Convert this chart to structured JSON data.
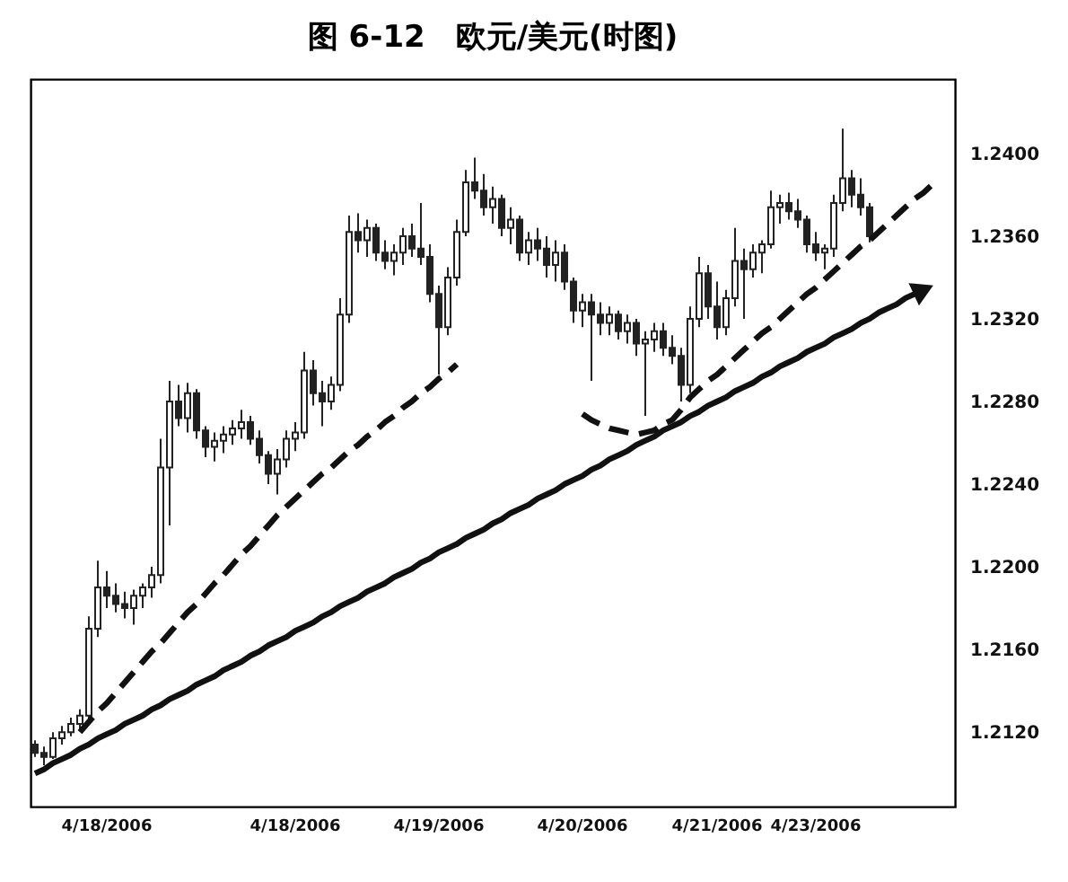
{
  "chart_data": {
    "type": "candlestick",
    "title": "图 6-12　欧元/美元(时图)",
    "color": "#222222",
    "categories": [
      null,
      null,
      null,
      null,
      null,
      null,
      null,
      null,
      "4/18/2006",
      null,
      null,
      null,
      null,
      null,
      null,
      null,
      null,
      null,
      null,
      null,
      null,
      null,
      null,
      null,
      null,
      null,
      null,
      null,
      null,
      "4/18/2006",
      null,
      null,
      null,
      null,
      null,
      null,
      null,
      null,
      null,
      null,
      null,
      null,
      null,
      null,
      null,
      "4/19/2006",
      null,
      null,
      null,
      null,
      null,
      null,
      null,
      null,
      null,
      null,
      null,
      null,
      null,
      null,
      null,
      "4/20/2006",
      null,
      null,
      null,
      null,
      null,
      null,
      null,
      null,
      null,
      null,
      null,
      null,
      null,
      null,
      "4/21/2006",
      null,
      null,
      null,
      null,
      null,
      null,
      null,
      null,
      null,
      null,
      "4/23/2006",
      null,
      null,
      null,
      null,
      null,
      null,
      null,
      null,
      null,
      null,
      null,
      null,
      null,
      null,
      null
    ],
    "ohlc": [
      [
        1.2114,
        1.2116,
        1.2108,
        1.211
      ],
      [
        1.211,
        1.2113,
        1.2104,
        1.2108
      ],
      [
        1.2108,
        1.212,
        1.2107,
        1.2117
      ],
      [
        1.2117,
        1.2123,
        1.2114,
        1.212
      ],
      [
        1.212,
        1.2127,
        1.2118,
        1.2124
      ],
      [
        1.2124,
        1.2131,
        1.2121,
        1.2128
      ],
      [
        1.2128,
        1.2176,
        1.2126,
        1.217
      ],
      [
        1.217,
        1.2203,
        1.2166,
        1.219
      ],
      [
        1.219,
        1.2198,
        1.218,
        1.2186
      ],
      [
        1.2186,
        1.2192,
        1.2178,
        1.2182
      ],
      [
        1.2182,
        1.2188,
        1.2175,
        1.218
      ],
      [
        1.218,
        1.2189,
        1.2172,
        1.2186
      ],
      [
        1.2186,
        1.2192,
        1.218,
        1.219
      ],
      [
        1.219,
        1.22,
        1.2185,
        1.2196
      ],
      [
        1.2196,
        1.2262,
        1.2192,
        1.2248
      ],
      [
        1.2248,
        1.229,
        1.222,
        1.228
      ],
      [
        1.228,
        1.2288,
        1.2268,
        1.2272
      ],
      [
        1.2272,
        1.2289,
        1.2265,
        1.2284
      ],
      [
        1.2284,
        1.2286,
        1.2262,
        1.2266
      ],
      [
        1.2266,
        1.2268,
        1.2253,
        1.2258
      ],
      [
        1.2258,
        1.2265,
        1.2251,
        1.2261
      ],
      [
        1.2261,
        1.2268,
        1.2255,
        1.2264
      ],
      [
        1.2264,
        1.2271,
        1.2259,
        1.2267
      ],
      [
        1.2267,
        1.2276,
        1.2262,
        1.227
      ],
      [
        1.227,
        1.2273,
        1.2259,
        1.2262
      ],
      [
        1.2262,
        1.2266,
        1.225,
        1.2254
      ],
      [
        1.2254,
        1.2256,
        1.224,
        1.2245
      ],
      [
        1.2245,
        1.2257,
        1.2235,
        1.2252
      ],
      [
        1.2252,
        1.2266,
        1.2248,
        1.2262
      ],
      [
        1.2262,
        1.227,
        1.2256,
        1.2265
      ],
      [
        1.2265,
        1.2304,
        1.2262,
        1.2295
      ],
      [
        1.2295,
        1.23,
        1.2278,
        1.2284
      ],
      [
        1.2284,
        1.229,
        1.2268,
        1.228
      ],
      [
        1.228,
        1.2292,
        1.2276,
        1.2288
      ],
      [
        1.2288,
        1.233,
        1.2285,
        1.2322
      ],
      [
        1.2322,
        1.237,
        1.2318,
        1.2362
      ],
      [
        1.2362,
        1.2371,
        1.2352,
        1.2358
      ],
      [
        1.2358,
        1.2368,
        1.235,
        1.2364
      ],
      [
        1.2364,
        1.2366,
        1.2348,
        1.2352
      ],
      [
        1.2352,
        1.2358,
        1.2344,
        1.2348
      ],
      [
        1.2348,
        1.2356,
        1.2341,
        1.2352
      ],
      [
        1.2352,
        1.2364,
        1.2346,
        1.236
      ],
      [
        1.236,
        1.2366,
        1.235,
        1.2354
      ],
      [
        1.2354,
        1.2376,
        1.2346,
        1.235
      ],
      [
        1.235,
        1.2356,
        1.2328,
        1.2332
      ],
      [
        1.2332,
        1.2336,
        1.2293,
        1.2316
      ],
      [
        1.2316,
        1.2345,
        1.2312,
        1.234
      ],
      [
        1.234,
        1.2368,
        1.2336,
        1.2362
      ],
      [
        1.2362,
        1.2392,
        1.236,
        1.2386
      ],
      [
        1.2386,
        1.2398,
        1.2378,
        1.2382
      ],
      [
        1.2382,
        1.239,
        1.237,
        1.2374
      ],
      [
        1.2374,
        1.2384,
        1.2366,
        1.2378
      ],
      [
        1.2378,
        1.238,
        1.236,
        1.2364
      ],
      [
        1.2364,
        1.2374,
        1.2356,
        1.2368
      ],
      [
        1.2368,
        1.237,
        1.2348,
        1.2352
      ],
      [
        1.2352,
        1.2362,
        1.2346,
        1.2358
      ],
      [
        1.2358,
        1.2364,
        1.2348,
        1.2354
      ],
      [
        1.2354,
        1.236,
        1.234,
        1.2346
      ],
      [
        1.2346,
        1.2358,
        1.2338,
        1.2352
      ],
      [
        1.2352,
        1.2356,
        1.2334,
        1.2338
      ],
      [
        1.2338,
        1.234,
        1.2318,
        1.2324
      ],
      [
        1.2324,
        1.2332,
        1.2316,
        1.2328
      ],
      [
        1.2328,
        1.2332,
        1.229,
        1.2322
      ],
      [
        1.2322,
        1.2328,
        1.2312,
        1.2318
      ],
      [
        1.2318,
        1.2326,
        1.2312,
        1.2322
      ],
      [
        1.2322,
        1.2324,
        1.231,
        1.2314
      ],
      [
        1.2314,
        1.2322,
        1.2308,
        1.2318
      ],
      [
        1.2318,
        1.232,
        1.2302,
        1.2308
      ],
      [
        1.2308,
        1.2314,
        1.2273,
        1.231
      ],
      [
        1.231,
        1.2318,
        1.2304,
        1.2314
      ],
      [
        1.2314,
        1.2318,
        1.2302,
        1.2306
      ],
      [
        1.2306,
        1.2312,
        1.2298,
        1.2302
      ],
      [
        1.2302,
        1.2306,
        1.228,
        1.2288
      ],
      [
        1.2288,
        1.2326,
        1.2284,
        1.232
      ],
      [
        1.232,
        1.235,
        1.2316,
        1.2342
      ],
      [
        1.2342,
        1.2346,
        1.232,
        1.2326
      ],
      [
        1.2326,
        1.2338,
        1.231,
        1.2316
      ],
      [
        1.2316,
        1.2334,
        1.2312,
        1.233
      ],
      [
        1.233,
        1.2364,
        1.2326,
        1.2348
      ],
      [
        1.2348,
        1.2354,
        1.232,
        1.2344
      ],
      [
        1.2344,
        1.2356,
        1.234,
        1.2352
      ],
      [
        1.2352,
        1.2358,
        1.2342,
        1.2356
      ],
      [
        1.2356,
        1.2382,
        1.2354,
        1.2374
      ],
      [
        1.2374,
        1.238,
        1.2366,
        1.2376
      ],
      [
        1.2376,
        1.2381,
        1.2368,
        1.2372
      ],
      [
        1.2372,
        1.2378,
        1.2364,
        1.2368
      ],
      [
        1.2368,
        1.237,
        1.2352,
        1.2356
      ],
      [
        1.2356,
        1.2362,
        1.2348,
        1.2352
      ],
      [
        1.2352,
        1.2356,
        1.2344,
        1.2354
      ],
      [
        1.2354,
        1.238,
        1.235,
        1.2376
      ],
      [
        1.2376,
        1.2412,
        1.2372,
        1.2388
      ],
      [
        1.2388,
        1.2392,
        1.2374,
        1.238
      ],
      [
        1.238,
        1.2388,
        1.237,
        1.2374
      ],
      [
        1.2374,
        1.2376,
        1.2357,
        1.236
      ],
      null,
      null,
      null,
      null,
      null,
      null,
      null,
      null,
      null
    ],
    "series": [
      {
        "type": "line",
        "color": "#111111",
        "line_style": "dashed",
        "values": [
          null,
          null,
          null,
          null,
          null,
          1.212,
          1.2125,
          1.213,
          1.2134,
          1.2139,
          1.2144,
          1.2149,
          1.2154,
          1.2159,
          1.2163,
          1.2168,
          1.2173,
          1.2178,
          1.2182,
          1.2187,
          1.2192,
          1.2196,
          1.2201,
          1.2206,
          1.221,
          1.2215,
          1.222,
          1.2225,
          1.2229,
          1.2233,
          1.2237,
          1.2241,
          1.2245,
          1.2248,
          1.2252,
          1.2256,
          1.2259,
          1.2263,
          1.2266,
          1.227,
          1.2273,
          1.2277,
          1.228,
          1.2284,
          1.2287,
          1.2291,
          1.2294,
          1.2298,
          null,
          null,
          null,
          null,
          null,
          null,
          null,
          null,
          null,
          null,
          null,
          null,
          null,
          1.2274,
          1.2271,
          1.2269,
          1.2267,
          1.2266,
          1.2265,
          1.2264,
          1.2265,
          1.2266,
          1.2269,
          1.2271,
          1.2276,
          1.2282,
          1.2286,
          1.229,
          1.2293,
          1.2297,
          1.2301,
          1.2305,
          1.2309,
          1.2313,
          1.2316,
          1.232,
          1.2324,
          1.2328,
          1.2332,
          1.2335,
          1.2339,
          1.2343,
          1.2347,
          1.2351,
          1.2355,
          1.2358,
          1.2362,
          1.2366,
          1.237,
          1.2374,
          1.2378,
          1.2381,
          1.2385,
          null,
          null
        ]
      },
      {
        "type": "line",
        "color": "#111111",
        "line_style": "solid",
        "values": [
          1.21,
          1.2102,
          1.2105,
          1.2107,
          1.2109,
          1.2112,
          1.2114,
          1.2117,
          1.2119,
          1.2121,
          1.2124,
          1.2126,
          1.2128,
          1.2131,
          1.2133,
          1.2136,
          1.2138,
          1.214,
          1.2143,
          1.2145,
          1.2147,
          1.215,
          1.2152,
          1.2154,
          1.2157,
          1.2159,
          1.2162,
          1.2164,
          1.2166,
          1.2169,
          1.2171,
          1.2173,
          1.2176,
          1.2178,
          1.2181,
          1.2183,
          1.2185,
          1.2188,
          1.219,
          1.2192,
          1.2195,
          1.2197,
          1.2199,
          1.2202,
          1.2204,
          1.2207,
          1.2209,
          1.2211,
          1.2214,
          1.2216,
          1.2218,
          1.2221,
          1.2223,
          1.2226,
          1.2228,
          1.223,
          1.2233,
          1.2235,
          1.2237,
          1.224,
          1.2242,
          1.2244,
          1.2247,
          1.2249,
          1.2252,
          1.2254,
          1.2256,
          1.2259,
          1.2261,
          1.2263,
          1.2266,
          1.2268,
          1.227,
          1.2273,
          1.2275,
          1.2278,
          1.228,
          1.2282,
          1.2285,
          1.2287,
          1.2289,
          1.2292,
          1.2294,
          1.2297,
          1.2299,
          1.2301,
          1.2304,
          1.2306,
          1.2308,
          1.2311,
          1.2313,
          1.2315,
          1.2318,
          1.232,
          1.2323,
          1.2325,
          1.2327,
          1.233,
          1.2332,
          1.2334,
          null,
          null,
          null
        ]
      }
    ],
    "ylim": [
      1.2084,
      1.2436
    ],
    "yticks": [
      {
        "value": 1.212,
        "label": "1.2120"
      },
      {
        "value": 1.216,
        "label": "1.2160"
      },
      {
        "value": 1.22,
        "label": "1.2200"
      },
      {
        "value": 1.224,
        "label": "1.2240"
      },
      {
        "value": 1.228,
        "label": "1.2280"
      },
      {
        "value": 1.232,
        "label": "1.2320"
      },
      {
        "value": 1.236,
        "label": "1.2360"
      },
      {
        "value": 1.24,
        "label": "1.2400"
      }
    ]
  }
}
